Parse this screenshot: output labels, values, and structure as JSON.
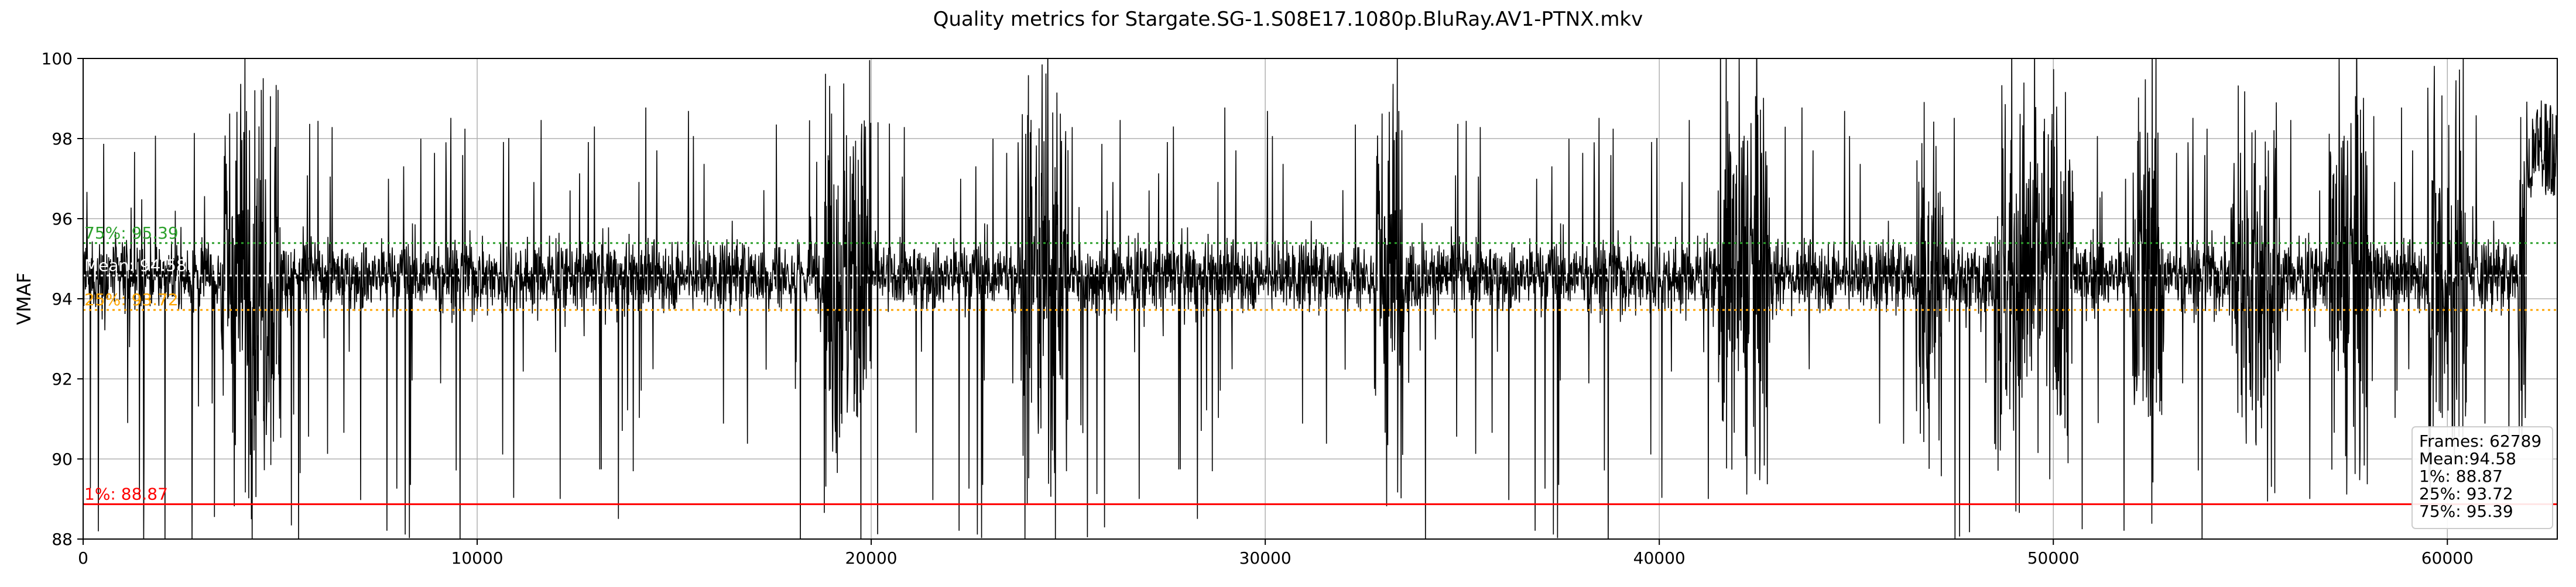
{
  "chart_data": {
    "type": "line",
    "title": "Quality metrics for Stargate.SG-1.S08E17.1080p.BluRay.AV1-PTNX.mkv",
    "xlabel": "",
    "ylabel": "VMAF",
    "xlim": [
      0,
      62789
    ],
    "ylim": [
      88,
      100
    ],
    "xticks": [
      0,
      10000,
      20000,
      30000,
      40000,
      50000,
      60000
    ],
    "yticks": [
      88,
      90,
      92,
      94,
      96,
      98,
      100
    ],
    "xtick_labels": [
      "0",
      "10000",
      "20000",
      "30000",
      "40000",
      "50000",
      "60000"
    ],
    "ytick_labels": [
      "88",
      "90",
      "92",
      "94",
      "96",
      "98",
      "100"
    ],
    "grid": true,
    "series": [
      {
        "name": "",
        "color": "#000000",
        "frame_count": 62789,
        "mean": 94.58,
        "typical_range": [
          93.0,
          96.2
        ],
        "high_variance_regions": [
          [
            3500,
            5000
          ],
          [
            18800,
            20000
          ],
          [
            23800,
            25000
          ],
          [
            32800,
            33500
          ],
          [
            41500,
            42800
          ],
          [
            46500,
            47200
          ],
          [
            48500,
            50500
          ],
          [
            52000,
            52800
          ],
          [
            54500,
            55800
          ],
          [
            57000,
            58000
          ],
          [
            59500,
            60500
          ],
          [
            61800,
            62789
          ]
        ]
      }
    ],
    "reference_lines": [
      {
        "label": "75%: 95.39",
        "value": 95.39,
        "color": "#2ca02c",
        "style": "dotted"
      },
      {
        "label": "Mean: 94.58",
        "value": 94.58,
        "color": "#ffffff",
        "style": "dotted"
      },
      {
        "label": "25%: 93.72",
        "value": 93.72,
        "color": "#ffa500",
        "style": "dotted"
      },
      {
        "label": "1%: 88.87",
        "value": 88.87,
        "color": "#ff0000",
        "style": "solid"
      }
    ],
    "legend": {
      "placement": "bottom-right",
      "lines": [
        "Frames: 62789",
        "Mean:94.58",
        "1%: 88.87",
        "25%: 93.72",
        "75%: 95.39"
      ]
    }
  }
}
